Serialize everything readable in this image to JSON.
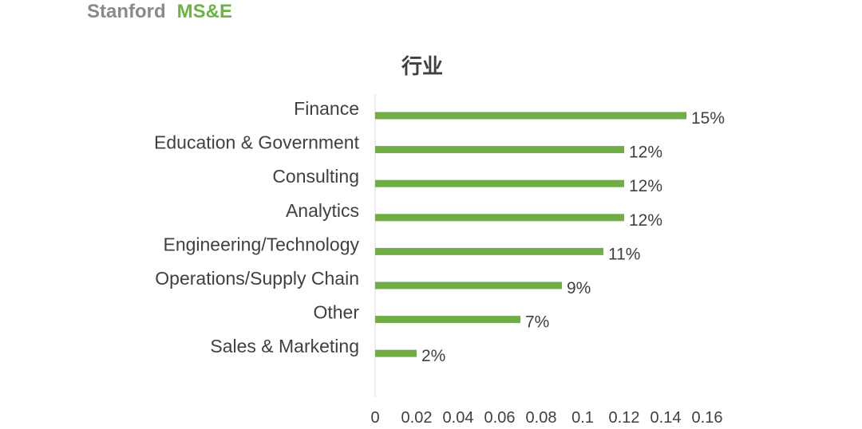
{
  "header": {
    "brand_primary": "Stanford",
    "brand_secondary": "MS&E"
  },
  "colors": {
    "bar": "#70ad47",
    "brand_green": "#6db342",
    "brand_gray": "#8a8a8a",
    "text": "#404040",
    "axis": "#d9d9d9"
  },
  "chart_data": {
    "type": "bar",
    "orientation": "horizontal",
    "title": "行业",
    "categories": [
      "Finance",
      "Education & Government",
      "Consulting",
      "Analytics",
      "Engineering/Technology",
      "Operations/Supply Chain",
      "Other",
      "Sales & Marketing"
    ],
    "values": [
      0.15,
      0.12,
      0.12,
      0.12,
      0.11,
      0.09,
      0.07,
      0.02
    ],
    "data_labels": [
      "15%",
      "12%",
      "12%",
      "12%",
      "11%",
      "9%",
      "7%",
      "2%"
    ],
    "xlim": [
      0,
      0.16
    ],
    "xticks": [
      "0",
      "0.02",
      "0.04",
      "0.06",
      "0.08",
      "0.1",
      "0.12",
      "0.14",
      "0.16"
    ],
    "xlabel": "",
    "ylabel": "",
    "grid": false,
    "legend": "none"
  }
}
